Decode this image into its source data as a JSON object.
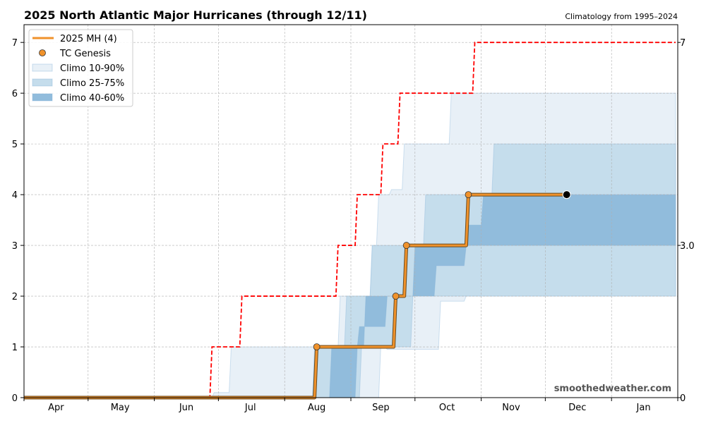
{
  "chart_data": {
    "type": "line",
    "title": "2025 North Atlantic Major Hurricanes (through 12/11)",
    "subtitle": "Climatology from 1995–2024",
    "watermark": "smoothedweather.com",
    "xlabel": "",
    "ylabel": "",
    "xlim": [
      "2025-04-01",
      "2026-02-01"
    ],
    "ylim": [
      0,
      7.35
    ],
    "grid": true,
    "legend_placement": "top-left",
    "x_tick_labels": [
      {
        "date": "2025-04-16",
        "label": "Apr"
      },
      {
        "date": "2025-05-16",
        "label": "May"
      },
      {
        "date": "2025-06-16",
        "label": "Jun"
      },
      {
        "date": "2025-07-16",
        "label": "Jul"
      },
      {
        "date": "2025-08-16",
        "label": "Aug"
      },
      {
        "date": "2025-09-15",
        "label": "Sep"
      },
      {
        "date": "2025-10-16",
        "label": "Oct"
      },
      {
        "date": "2025-11-15",
        "label": "Nov"
      },
      {
        "date": "2025-12-16",
        "label": "Dec"
      },
      {
        "date": "2026-01-16",
        "label": "Jan"
      }
    ],
    "x_ticks": [
      "2025-04-01",
      "2025-05-01",
      "2025-06-01",
      "2025-07-01",
      "2025-08-01",
      "2025-09-01",
      "2025-10-01",
      "2025-11-01",
      "2025-12-01",
      "2026-01-01",
      "2026-02-01"
    ],
    "y_ticks": [
      0,
      1,
      2,
      3,
      4,
      5,
      6,
      7
    ],
    "right_axis_ticks": [
      {
        "value": 0,
        "label": "0"
      },
      {
        "value": 3,
        "label": "3.0"
      },
      {
        "value": 7,
        "label": "7"
      }
    ],
    "legend": [
      {
        "key": "mh",
        "label": "2025 MH (4)"
      },
      {
        "key": "genesis",
        "label": "TC Genesis"
      },
      {
        "key": "b1090",
        "label": "Climo 10-90%"
      },
      {
        "key": "b2575",
        "label": "Climo 25-75%"
      },
      {
        "key": "b4060",
        "label": "Climo 40-60%"
      }
    ],
    "colors": {
      "mh": "#f0922b",
      "mh_edge": "#6b4a1e",
      "record": "#ff0000",
      "b1090": "#e8f0f7",
      "b2575": "#c5ddec",
      "b4060": "#91bcdc",
      "b_edge": "#7fb0d6"
    },
    "series_2025": {
      "steps": [
        [
          "2025-04-01",
          0
        ],
        [
          "2025-08-16",
          1
        ],
        [
          "2025-09-22",
          2
        ],
        [
          "2025-09-27",
          3
        ],
        [
          "2025-10-26",
          4
        ]
      ],
      "end": "2025-12-11",
      "genesis": [
        [
          "2025-08-16",
          1
        ],
        [
          "2025-09-22",
          2
        ],
        [
          "2025-09-27",
          3
        ],
        [
          "2025-10-26",
          4
        ]
      ],
      "current": [
        "2025-12-11",
        4
      ]
    },
    "record_max": {
      "steps": [
        [
          "2025-04-01",
          0
        ],
        [
          "2025-06-28",
          1
        ],
        [
          "2025-07-12",
          2
        ],
        [
          "2025-08-26",
          3
        ],
        [
          "2025-09-04",
          4
        ],
        [
          "2025-09-16",
          5
        ],
        [
          "2025-09-24",
          6
        ],
        [
          "2025-10-29",
          7
        ]
      ],
      "end": "2026-01-31"
    },
    "bands": {
      "b1090": {
        "upper": [
          [
            "2025-06-26",
            0
          ],
          [
            "2025-06-29",
            0.1
          ],
          [
            "2025-07-07",
            1
          ],
          [
            "2025-08-27",
            2
          ],
          [
            "2025-09-11",
            3
          ],
          [
            "2025-09-14",
            4
          ],
          [
            "2025-09-20",
            4.1
          ],
          [
            "2025-09-26",
            5
          ],
          [
            "2025-10-18",
            6
          ]
        ],
        "lower": [
          [
            "2025-06-26",
            0
          ],
          [
            "2025-09-15",
            1
          ],
          [
            "2025-09-18",
            0.95
          ],
          [
            "2025-10-13",
            1.9
          ],
          [
            "2025-10-25",
            2
          ]
        ],
        "end": "2026-01-31"
      },
      "b2575": {
        "upper": [
          [
            "2025-07-01",
            0
          ],
          [
            "2025-08-15",
            1
          ],
          [
            "2025-08-30",
            2
          ],
          [
            "2025-09-11",
            3
          ],
          [
            "2025-10-06",
            4
          ],
          [
            "2025-11-07",
            5
          ]
        ],
        "lower": [
          [
            "2025-07-01",
            0
          ],
          [
            "2025-09-06",
            1
          ],
          [
            "2025-09-30",
            2
          ]
        ],
        "end": "2026-01-31"
      },
      "b4060": {
        "upper": [
          [
            "2025-08-21",
            0
          ],
          [
            "2025-08-23",
            1
          ],
          [
            "2025-09-08",
            2
          ],
          [
            "2025-10-01",
            3
          ],
          [
            "2025-10-26",
            3.4
          ],
          [
            "2025-11-02",
            4
          ]
        ],
        "lower": [
          [
            "2025-08-21",
            0
          ],
          [
            "2025-09-04",
            1
          ],
          [
            "2025-09-05",
            1.4
          ],
          [
            "2025-09-18",
            2
          ],
          [
            "2025-10-11",
            2.6
          ],
          [
            "2025-10-25",
            3
          ]
        ],
        "end": "2026-01-31"
      }
    }
  }
}
